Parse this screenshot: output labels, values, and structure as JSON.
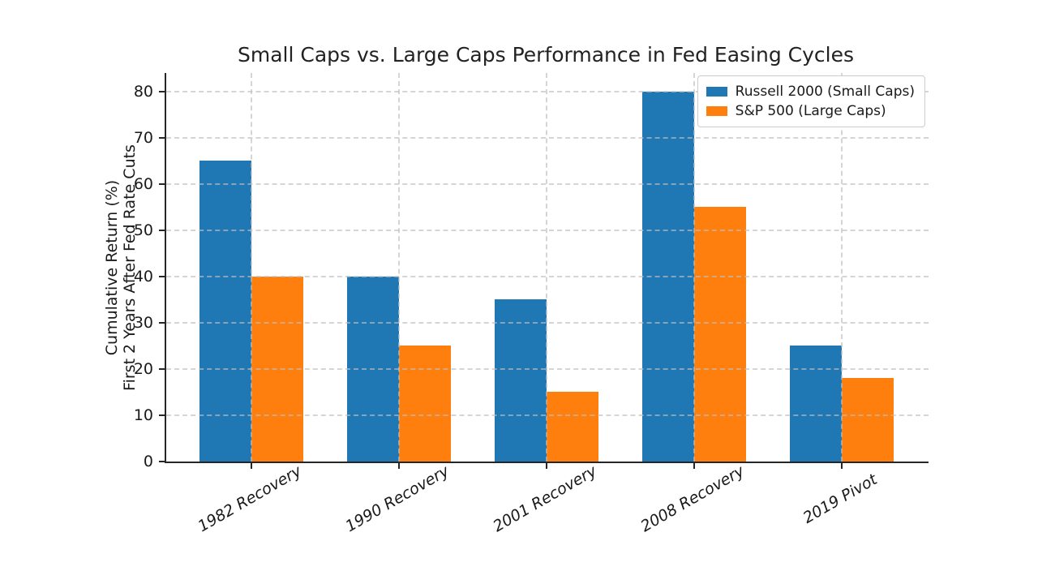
{
  "chart_data": {
    "type": "bar",
    "title": "Small Caps vs. Large Caps Performance in Fed Easing Cycles",
    "categories": [
      "1982 Recovery",
      "1990 Recovery",
      "2001 Recovery",
      "2008 Recovery",
      "2019 Pivot"
    ],
    "series": [
      {
        "name": "Russell 2000 (Small Caps)",
        "color": "#1f77b4",
        "values": [
          65,
          40,
          35,
          80,
          25
        ]
      },
      {
        "name": "S&P 500 (Large Caps)",
        "color": "#ff7f0e",
        "values": [
          40,
          25,
          15,
          55,
          18
        ]
      }
    ],
    "xlabel": "",
    "ylabel": "Cumulative Return (%)\nFirst 2 Years After Fed Rate Cuts",
    "ylabel_lines": [
      "Cumulative Return (%)",
      "First 2 Years After Fed Rate Cuts"
    ],
    "yticks": [
      0,
      10,
      20,
      30,
      40,
      50,
      60,
      70,
      80
    ],
    "ylim": [
      0,
      84
    ],
    "grid": "dashed-both-axes",
    "legend_position": "upper-right",
    "bar_orientation": "vertical"
  }
}
